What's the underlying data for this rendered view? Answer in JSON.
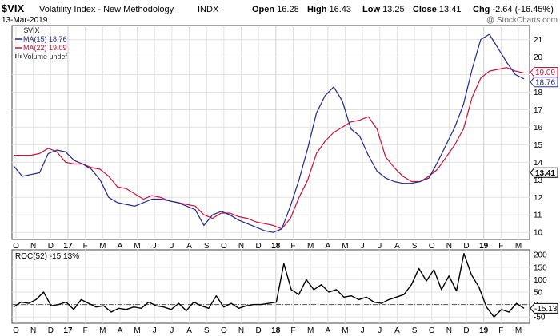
{
  "header": {
    "symbol": "$VIX",
    "name": "Volatility Index - New Methodology",
    "exchange": "INDX",
    "date": "13-Mar-2019",
    "watermark": "@ StockCharts.com",
    "quote": [
      {
        "label": "Open",
        "value": "16.28"
      },
      {
        "label": "High",
        "value": "16.43"
      },
      {
        "label": "Low",
        "value": "13.25"
      },
      {
        "label": "Close",
        "value": "13.41"
      },
      {
        "label": "Chg",
        "value": "-2.64 (-16.45%)"
      }
    ]
  },
  "legend": {
    "series_label": "$VIX",
    "ma15": "MA(15) 18.76",
    "ma22": "MA(22) 19.09",
    "volume": "Volume undef"
  },
  "roc_label": "ROC(52) -15.13%",
  "colors": {
    "vix": "#1f2a8a",
    "ma22": "#d0103a",
    "roc": "#000000",
    "grid": "#e2e2e2"
  },
  "chart_data": [
    {
      "type": "line",
      "panel": "price",
      "x_labels": [
        "O",
        "N",
        "D",
        "17",
        "F",
        "M",
        "A",
        "M",
        "J",
        "J",
        "A",
        "S",
        "O",
        "N",
        "D",
        "18",
        "F",
        "M",
        "A",
        "M",
        "J",
        "J",
        "A",
        "S",
        "O",
        "N",
        "D",
        "19",
        "F",
        "M"
      ],
      "y_ticks": [
        10,
        11,
        12,
        13,
        14,
        15,
        16,
        17,
        18,
        19,
        20,
        21
      ],
      "ylim": [
        9.6,
        21.8
      ],
      "last_value_labels": [
        "19.09",
        "18.76",
        "13.41"
      ],
      "series": [
        {
          "name": "MA(15)",
          "values": [
            13.8,
            13.2,
            13.3,
            13.4,
            14.5,
            14.7,
            14.6,
            14.1,
            13.9,
            13.6,
            13.0,
            12.0,
            11.7,
            11.6,
            11.5,
            11.7,
            11.9,
            11.9,
            11.8,
            11.7,
            11.5,
            11.3,
            10.4,
            11.0,
            11.2,
            11.0,
            10.7,
            10.5,
            10.3,
            10.1,
            10.0,
            10.2,
            11.5,
            13.0,
            14.8,
            16.8,
            17.8,
            18.3,
            17.5,
            15.9,
            15.5,
            14.4,
            13.5,
            13.1,
            12.9,
            12.8,
            12.8,
            12.9,
            13.1,
            14.0,
            15.0,
            16.0,
            17.3,
            19.3,
            21.0,
            21.3,
            20.5,
            19.7,
            19.0,
            18.76
          ]
        },
        {
          "name": "MA(22)",
          "values": [
            14.4,
            14.4,
            14.4,
            14.5,
            14.8,
            14.6,
            14.0,
            13.9,
            13.9,
            13.7,
            13.6,
            13.2,
            12.6,
            12.5,
            12.2,
            11.9,
            12.1,
            12.0,
            11.8,
            11.7,
            11.6,
            11.5,
            11.0,
            10.8,
            11.1,
            11.1,
            10.9,
            10.8,
            10.6,
            10.5,
            10.4,
            10.2,
            10.8,
            12.0,
            13.0,
            14.5,
            15.2,
            15.7,
            16.0,
            16.3,
            16.4,
            16.6,
            15.9,
            14.3,
            13.7,
            13.2,
            12.9,
            12.9,
            13.2,
            13.6,
            14.3,
            15.0,
            15.9,
            17.7,
            18.8,
            19.2,
            19.3,
            19.4,
            19.2,
            19.09
          ]
        }
      ]
    },
    {
      "type": "line",
      "panel": "roc",
      "y_ticks": [
        -50,
        0,
        50,
        100,
        150,
        200
      ],
      "reference_line": 0,
      "ylim": [
        -75,
        220
      ],
      "last_value_label": "-15.13",
      "series": [
        {
          "name": "ROC(52)",
          "values": [
            -10,
            10,
            5,
            20,
            50,
            -5,
            0,
            10,
            -20,
            20,
            5,
            -10,
            -5,
            -30,
            -15,
            -20,
            -10,
            -15,
            10,
            -5,
            -10,
            -20,
            5,
            -25,
            10,
            -5,
            -15,
            35,
            -10,
            5,
            -15,
            -5,
            0,
            0,
            5,
            10,
            165,
            60,
            40,
            100,
            60,
            80,
            50,
            60,
            30,
            35,
            20,
            30,
            10,
            5,
            20,
            30,
            40,
            80,
            145,
            95,
            140,
            60,
            115,
            55,
            205,
            120,
            70,
            -10,
            -50,
            -20,
            -30,
            5,
            -15.13
          ]
        }
      ]
    }
  ]
}
